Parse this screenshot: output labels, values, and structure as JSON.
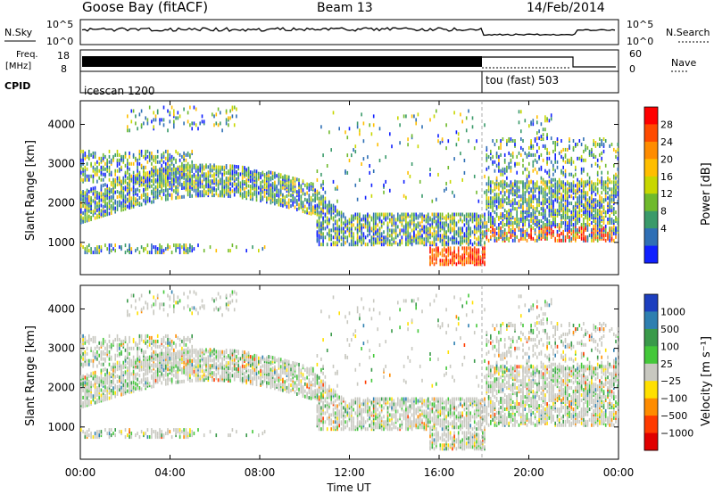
{
  "header": {
    "station": "Goose Bay (fitACF)",
    "beam": "Beam 13",
    "date": "14/Feb/2014"
  },
  "noise_panel": {
    "left_label": "N.Sky",
    "right_label": "N.Search",
    "left_ticks": [
      "10^5",
      "10^0"
    ],
    "right_ticks": [
      "10^5",
      "10^0"
    ],
    "legend_sky": "solid",
    "legend_search": "dotted"
  },
  "freq_panel": {
    "left_label": "Freq.",
    "left_unit": "[MHz]",
    "left_ticks": [
      "18",
      "8"
    ],
    "right_label": "Nave",
    "right_ticks": [
      "60",
      "0"
    ]
  },
  "cpid_panel": {
    "label": "CPID",
    "segments": [
      {
        "name": "icescan 1200",
        "start_hour": 0,
        "end_hour": 18
      },
      {
        "name": "tou (fast) 503",
        "start_hour": 18,
        "end_hour": 24
      }
    ]
  },
  "power_panel": {
    "ylabel": "Slant Range [km]",
    "yticks": [
      "4000",
      "3000",
      "2000",
      "1000"
    ],
    "colorbar_label": "Power [dB]",
    "colorbar_ticks": [
      "28",
      "24",
      "20",
      "16",
      "12",
      "8",
      "4"
    ],
    "colorbar_colors": [
      "#ff0000",
      "#ff4a00",
      "#ff8c00",
      "#ffbe00",
      "#c8d700",
      "#6fba2c",
      "#3a9a6a",
      "#2f6fb5",
      "#1020ff"
    ]
  },
  "velocity_panel": {
    "ylabel": "Slant Range [km]",
    "yticks": [
      "4000",
      "3000",
      "2000",
      "1000"
    ],
    "colorbar_label": "Velocity [m s⁻¹]",
    "colorbar_ticks": [
      "1000",
      "500",
      "100",
      "25",
      "−25",
      "−100",
      "−500",
      "−1000"
    ],
    "colorbar_colors": [
      "#1d3fbf",
      "#2e7fb0",
      "#3a9a4a",
      "#44c83a",
      "#c8c8c0",
      "#ffe000",
      "#ff8c00",
      "#ff3b00",
      "#e00000"
    ]
  },
  "xaxis": {
    "label": "Time UT",
    "ticks": [
      "00:00",
      "04:00",
      "08:00",
      "12:00",
      "16:00",
      "20:00",
      "00:00"
    ]
  },
  "chart_data": {
    "type": "heatmap",
    "title": "Goose Bay (fitACF)",
    "x_label": "Time UT",
    "y_label": "Slant Range [km]",
    "x_range_hours": [
      0,
      24
    ],
    "y_range_km": [
      180,
      4600
    ],
    "cpid_change_hour": 18,
    "power_colorbar": {
      "label": "Power [dB]",
      "range": [
        0,
        30
      ]
    },
    "velocity_colorbar": {
      "label": "Velocity [m s⁻¹]",
      "range": [
        -1000,
        1000
      ]
    },
    "echo_regions": [
      {
        "label": "ionospheric arc",
        "hours": [
          0,
          11
        ],
        "range_km": [
          1500,
          2800
        ]
      },
      {
        "label": "near-range band",
        "hours": [
          11,
          18
        ],
        "range_km": [
          900,
          1700
        ]
      },
      {
        "label": "strong scatter",
        "hours": [
          15.5,
          18
        ],
        "range_km": [
          400,
          900
        ]
      },
      {
        "label": "late scatter",
        "hours": [
          18,
          24
        ],
        "range_km": [
          1000,
          2500
        ]
      }
    ]
  }
}
